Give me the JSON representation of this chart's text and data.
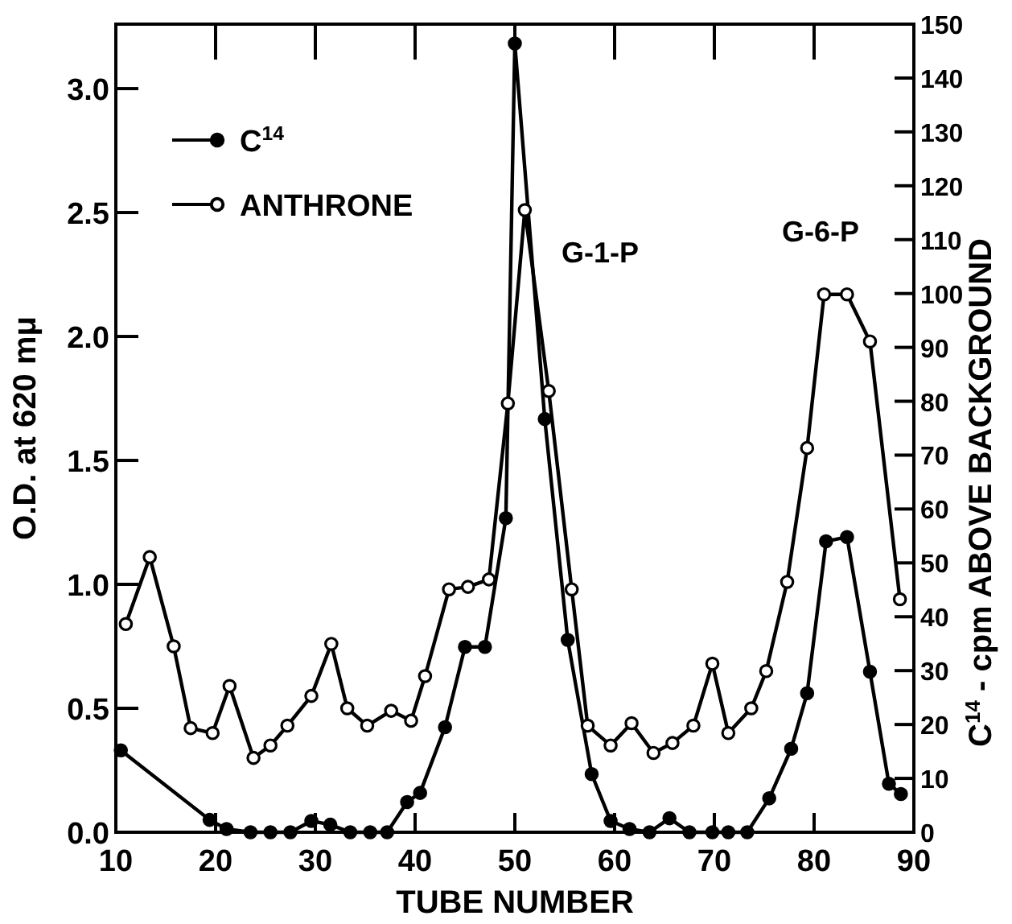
{
  "chart_data": {
    "type": "line",
    "xlabel": "TUBE NUMBER",
    "ylabel": "O.D. at 620 mμ",
    "y2label": "C$^{14}$ - cpm ABOVE BACKGROUND",
    "xlim": [
      10,
      90
    ],
    "xticks": [
      10,
      20,
      30,
      40,
      50,
      60,
      70,
      80,
      90
    ],
    "ylim": [
      0,
      3.26
    ],
    "yticks": [
      {
        "value": 0,
        "label": "0.0"
      },
      {
        "value": 0.5,
        "label": "0.5"
      },
      {
        "value": 1,
        "label": "1.0"
      },
      {
        "value": 1.5,
        "label": "1.5"
      },
      {
        "value": 2,
        "label": "2.0"
      },
      {
        "value": 2.5,
        "label": "2.5"
      },
      {
        "value": 3,
        "label": "3.0"
      }
    ],
    "y2lim": [
      0,
      150
    ],
    "y2ticks": [
      0,
      10,
      20,
      30,
      40,
      50,
      60,
      70,
      80,
      90,
      100,
      110,
      120,
      130,
      140,
      150
    ],
    "legend": "top left",
    "marker": "circle",
    "line_style": "solid",
    "grid": false,
    "annotations": [
      "G-1-P",
      "G-6-P"
    ],
    "series": [
      {
        "name": "C$^{14}$",
        "color": "#000000",
        "axis": "y2",
        "x": [
          10.5,
          19.4,
          21.1,
          23.5,
          25.5,
          27.5,
          29.6,
          31.5,
          33.5,
          35.5,
          37.2,
          39.2,
          40.5,
          43,
          45,
          47,
          49.1,
          50,
          53,
          55.3,
          57.7,
          59.6,
          61.5,
          63.5,
          65.5,
          67.5,
          69.8,
          71.4,
          73.3,
          75.5,
          77.7,
          79.3,
          81.2,
          83.3,
          85.6,
          87.5,
          88.7
        ],
        "values": [
          15.2,
          2.3,
          0.6,
          0,
          0,
          0,
          2.1,
          1.4,
          0,
          0,
          0,
          5.6,
          7.3,
          19.5,
          34.4,
          34.4,
          58.3,
          146.4,
          76.7,
          35.7,
          10.8,
          2.1,
          0.6,
          0,
          2.6,
          0,
          0,
          0,
          0,
          6.3,
          15.5,
          25.8,
          54,
          54.8,
          29.8,
          9,
          7.1
        ]
      },
      {
        "name": "ANTHRONE",
        "color": "#000000",
        "axis": "y",
        "x": [
          11,
          13.4,
          15.8,
          17.5,
          19.7,
          21.4,
          23.8,
          25.5,
          27.2,
          29.6,
          31.6,
          33.2,
          35.2,
          37.6,
          39.6,
          41,
          43.4,
          45.3,
          47.4,
          49.3,
          51,
          53.4,
          55.7,
          57.3,
          59.6,
          61.7,
          63.9,
          65.8,
          67.9,
          69.8,
          71.4,
          73.7,
          75.2,
          77.3,
          79.3,
          81,
          83.3,
          85.6,
          88.6
        ],
        "values": [
          0.84,
          1.11,
          0.75,
          0.42,
          0.4,
          0.59,
          0.3,
          0.35,
          0.43,
          0.55,
          0.76,
          0.5,
          0.43,
          0.49,
          0.45,
          0.63,
          0.98,
          0.99,
          1.02,
          1.73,
          2.51,
          1.78,
          0.98,
          0.43,
          0.35,
          0.44,
          0.32,
          0.36,
          0.43,
          0.68,
          0.4,
          0.5,
          0.65,
          1.01,
          1.55,
          2.17,
          2.17,
          1.98,
          0.94
        ]
      }
    ]
  }
}
